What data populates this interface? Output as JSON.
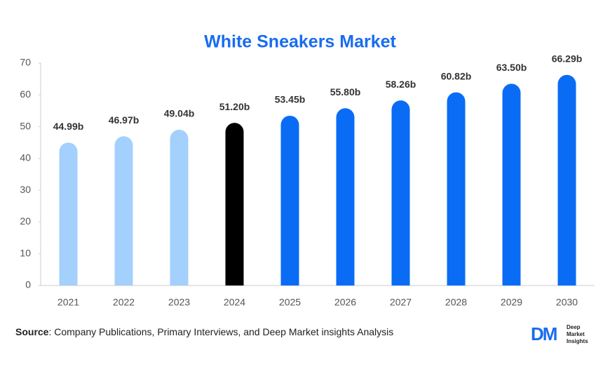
{
  "chart_data": {
    "type": "bar",
    "title": "White Sneakers Market",
    "categories": [
      "2021",
      "2022",
      "2023",
      "2024",
      "2025",
      "2026",
      "2027",
      "2028",
      "2029",
      "2030"
    ],
    "values": [
      44.99,
      46.97,
      49.04,
      51.2,
      53.45,
      55.8,
      58.26,
      60.82,
      63.5,
      66.29
    ],
    "value_labels": [
      "44.99b",
      "46.97b",
      "49.04b",
      "51.20b",
      "53.45b",
      "55.80b",
      "58.26b",
      "60.82b",
      "63.50b",
      "66.29b"
    ],
    "colors": [
      "#a3d0fd",
      "#a3d0fd",
      "#a3d0fd",
      "#000000",
      "#0a6cf5",
      "#0a6cf5",
      "#0a6cf5",
      "#0a6cf5",
      "#0a6cf5",
      "#0a6cf5"
    ],
    "ylim": [
      0,
      70
    ],
    "yticks": [
      0,
      10,
      20,
      30,
      40,
      50,
      60,
      70
    ],
    "grid": false
  },
  "footer": {
    "source_label": "Source",
    "source_text": ": Company Publications, Primary Interviews, and Deep Market insights Analysis",
    "logo_mark": "DM",
    "logo_lines": [
      "Deep",
      "Market",
      "Insights"
    ]
  }
}
